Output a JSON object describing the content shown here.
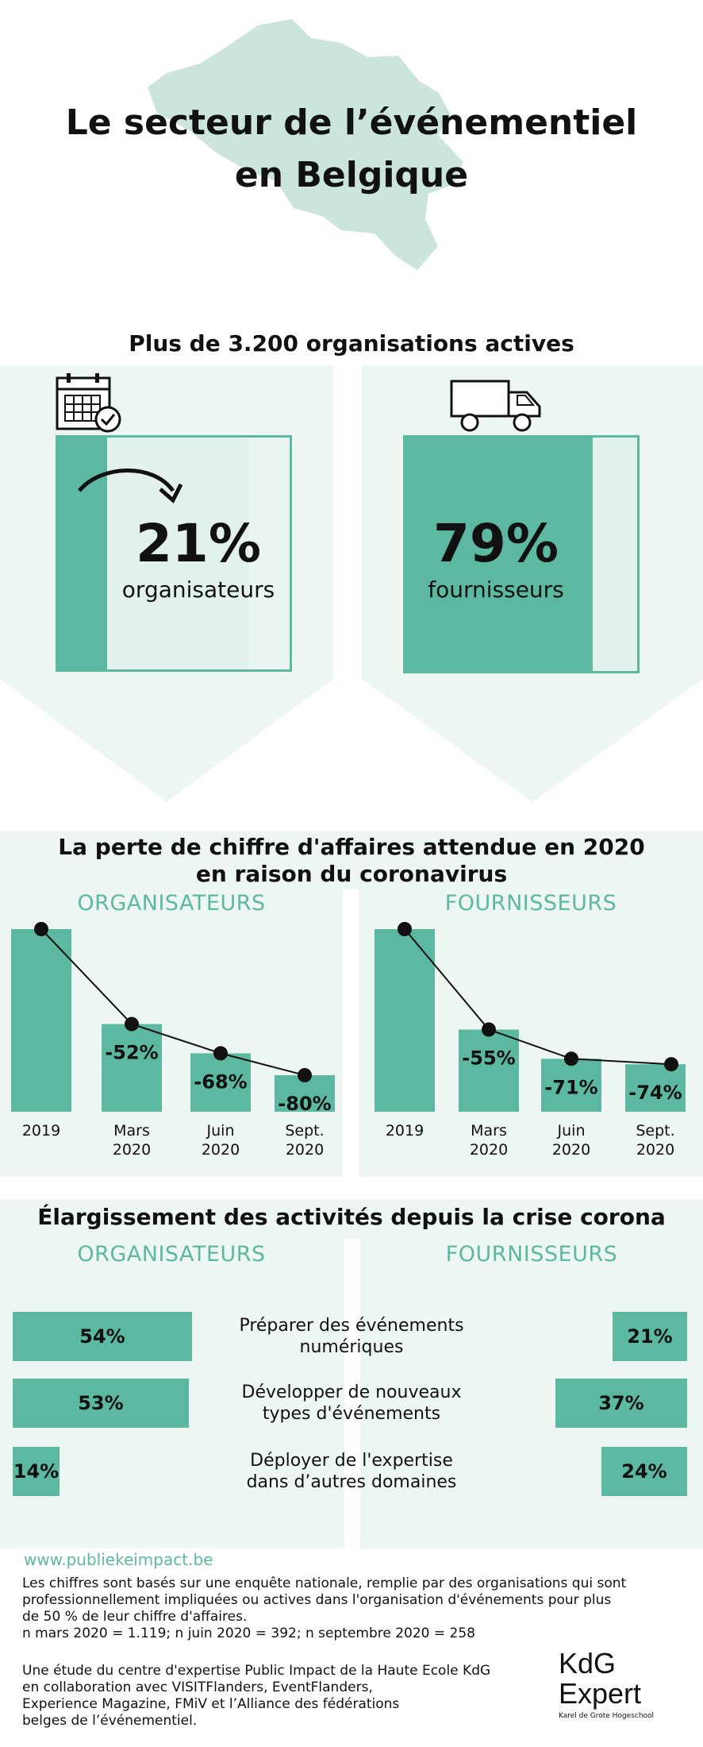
{
  "header": {
    "title_line1": "Le secteur de l’événementiel",
    "title_line2": "en Belgique"
  },
  "organisations": {
    "heading": "Plus de 3.200 organisations actives",
    "organisateurs": {
      "pct": "21%",
      "label": "organisateurs",
      "value": 21,
      "icon": "calendar-check-icon"
    },
    "fournisseurs": {
      "pct": "79%",
      "label": "fournisseurs",
      "value": 79,
      "icon": "truck-icon"
    }
  },
  "revenue_loss": {
    "heading_line1": "La perte de chiffre d'affaires attendue en 2020",
    "heading_line2": "en raison du coronavirus",
    "org_heading": "ORGANISATEURS",
    "four_heading": "FOURNISSEURS"
  },
  "activities": {
    "heading": "Élargissement des activités depuis la crise corona",
    "org_heading": "ORGANISATEURS",
    "four_heading": "FOURNISSEURS",
    "rows": [
      {
        "label_line1": "Préparer des événements",
        "label_line2": "numériques",
        "org": "54%",
        "org_value": 54,
        "four": "21%",
        "four_value": 21
      },
      {
        "label_line1": "Développer de nouveaux",
        "label_line2": "types d'événements",
        "org": "53%",
        "org_value": 53,
        "four": "37%",
        "four_value": 37
      },
      {
        "label_line1": "Déployer de l'expertise",
        "label_line2": "dans d’autres domaines",
        "org": "14%",
        "org_value": 14,
        "four": "24%",
        "four_value": 24
      }
    ]
  },
  "footer": {
    "url": "www.publiekeimpact.be",
    "para1_l1": "Les chiffres sont basés sur une enquête nationale, remplie par des organisations qui sont",
    "para1_l2": "professionnellement impliquées ou actives dans l'organisation d'événements pour plus",
    "para1_l3": "de 50 % de leur chiffre d'affaires.",
    "para1_l4": "n mars 2020 = 1.119; n juin 2020 = 392; n septembre 2020 = 258",
    "para2_l1": "Une étude du centre d'expertise Public Impact de la Haute Ecole KdG",
    "para2_l2": "en collaboration avec VISITFlanders, EventFlanders,",
    "para2_l3": "Experience Magazine, FMiV et l’Alliance des fédérations",
    "para2_l4": "belges de l’événementiel.",
    "logo_line1": "KdG",
    "logo_line2": "Expert",
    "logo_sub": "Karel de Grote Hogeschool"
  },
  "colors": {
    "accent": "#5cb8a0",
    "pale": "#eef6f3",
    "map": "#cbe5dc"
  },
  "chart_data": [
    {
      "type": "line",
      "title": "ORGANISATEURS",
      "categories": [
        "2019",
        "Mars 2020",
        "Juin 2020",
        "Sept. 2020"
      ],
      "values": [
        0,
        -52,
        -68,
        -80
      ],
      "data_labels": [
        "",
        "-52%",
        "-68%",
        "-80%"
      ],
      "ylim": [
        -100,
        0
      ],
      "grid": false
    },
    {
      "type": "line",
      "title": "FOURNISSEURS",
      "categories": [
        "2019",
        "Mars 2020",
        "Juin 2020",
        "Sept. 2020"
      ],
      "values": [
        0,
        -55,
        -71,
        -74
      ],
      "data_labels": [
        "",
        "-55%",
        "-71%",
        "-74%"
      ],
      "ylim": [
        -100,
        0
      ],
      "grid": false
    }
  ]
}
